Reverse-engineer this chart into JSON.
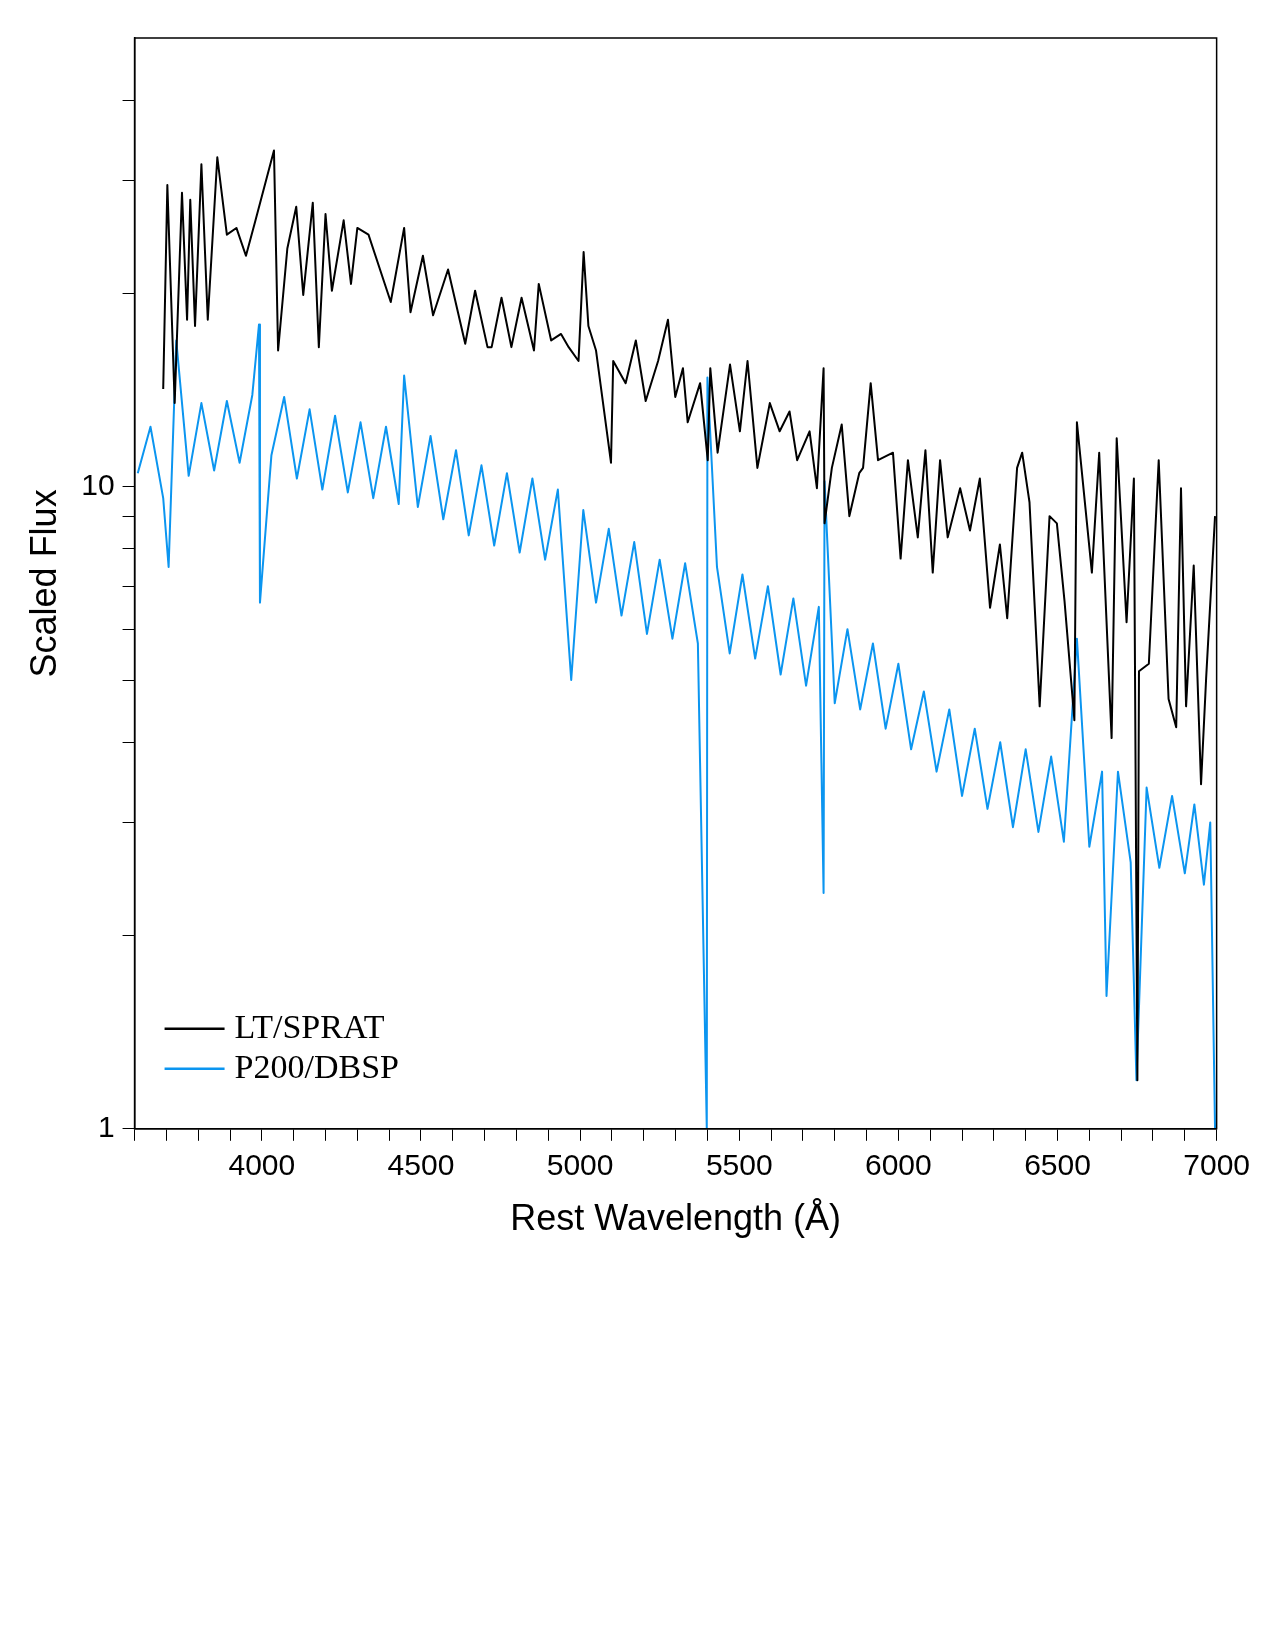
{
  "chart_data": {
    "type": "line",
    "xlabel": "Rest Wavelength (Å)",
    "ylabel": "Scaled Flux",
    "log": "y",
    "grid": false,
    "legend": "bottom left",
    "marker": "none",
    "line_style": "solid",
    "xlim": [
      3600,
      7000
    ],
    "ylim": [
      1,
      50
    ],
    "xticks": [
      {
        "value": 3600,
        "label": null
      },
      {
        "value": 3700,
        "label": null
      },
      {
        "value": 3800,
        "label": null
      },
      {
        "value": 3900,
        "label": null
      },
      4000,
      {
        "value": 4100,
        "label": null
      },
      {
        "value": 4200,
        "label": null
      },
      {
        "value": 4300,
        "label": null
      },
      {
        "value": 4400,
        "label": null
      },
      4500,
      {
        "value": 4600,
        "label": null
      },
      {
        "value": 4700,
        "label": null
      },
      {
        "value": 4800,
        "label": null
      },
      {
        "value": 4900,
        "label": null
      },
      5000,
      {
        "value": 5100,
        "label": null
      },
      {
        "value": 5200,
        "label": null
      },
      {
        "value": 5300,
        "label": null
      },
      {
        "value": 5400,
        "label": null
      },
      5500,
      {
        "value": 5600,
        "label": null
      },
      {
        "value": 5700,
        "label": null
      },
      {
        "value": 5800,
        "label": null
      },
      {
        "value": 5900,
        "label": null
      },
      6000,
      {
        "value": 6100,
        "label": null
      },
      {
        "value": 6200,
        "label": null
      },
      {
        "value": 6300,
        "label": null
      },
      {
        "value": 6400,
        "label": null
      },
      6500,
      {
        "value": 6600,
        "label": null
      },
      {
        "value": 6700,
        "label": null
      },
      {
        "value": 6800,
        "label": null
      },
      {
        "value": 6900,
        "label": null
      },
      7000
    ],
    "yticks": [
      1,
      {
        "value": 2,
        "label": null
      },
      {
        "value": 3,
        "label": null
      },
      {
        "value": 4,
        "label": null
      },
      {
        "value": 5,
        "label": null
      },
      {
        "value": 6,
        "label": null
      },
      {
        "value": 7,
        "label": null
      },
      {
        "value": 8,
        "label": null
      },
      {
        "value": 9,
        "label": null
      },
      10,
      {
        "value": 20,
        "label": null
      },
      {
        "value": 30,
        "label": null
      },
      {
        "value": 40,
        "label": null
      }
    ],
    "series": [
      {
        "name": "LT/SPRAT",
        "color": "#000000",
        "x": [
          3690,
          3703,
          3726,
          3749,
          3765,
          3775,
          3790,
          3810,
          3830,
          3860,
          3890,
          3920,
          3950,
          3980,
          4038,
          4051,
          4080,
          4108,
          4130,
          4160,
          4179,
          4200,
          4220,
          4257,
          4280,
          4300,
          4335,
          4405,
          4447,
          4467,
          4506,
          4538,
          4585,
          4639,
          4670,
          4709,
          4722,
          4753,
          4784,
          4816,
          4855,
          4870,
          4909,
          4940,
          4964,
          4995,
          5011,
          5026,
          5050,
          5097,
          5104,
          5143,
          5175,
          5206,
          5245,
          5276,
          5299,
          5323,
          5338,
          5377,
          5401,
          5409,
          5432,
          5471,
          5502,
          5526,
          5557,
          5596,
          5627,
          5658,
          5682,
          5721,
          5744,
          5765,
          5768,
          5791,
          5822,
          5846,
          5877,
          5889,
          5913,
          5936,
          5983,
          6007,
          6030,
          6061,
          6085,
          6108,
          6131,
          6155,
          6194,
          6225,
          6256,
          6288,
          6319,
          6342,
          6373,
          6389,
          6412,
          6444,
          6475,
          6498,
          6522,
          6553,
          6561,
          6608,
          6631,
          6670,
          6686,
          6717,
          6740,
          6751,
          6756,
          6787,
          6818,
          6849,
          6873,
          6888,
          6904,
          6928,
          6951,
          6967,
          6995
        ],
        "values": [
          14.2,
          29.5,
          13.5,
          28.7,
          18.2,
          28,
          17.8,
          31.8,
          18.2,
          32.6,
          24.7,
          25.3,
          22.9,
          26,
          33.4,
          16.3,
          23.5,
          27.3,
          19.9,
          27.7,
          16.5,
          26.6,
          20.2,
          26,
          20.7,
          25.3,
          24.7,
          19.4,
          25.3,
          18.7,
          22.9,
          18.5,
          21.8,
          16.7,
          20.2,
          16.5,
          16.5,
          19.7,
          16.5,
          19.7,
          16.3,
          20.7,
          16.9,
          17.3,
          16.5,
          15.7,
          23.2,
          17.8,
          16.3,
          10.9,
          15.7,
          14.5,
          16.9,
          13.6,
          15.7,
          18.2,
          13.8,
          15.3,
          12.6,
          14.5,
          11.0,
          15.3,
          11.3,
          15.5,
          12.2,
          15.7,
          10.7,
          13.5,
          12.2,
          13.1,
          11.0,
          12.2,
          9.95,
          15.3,
          8.77,
          10.7,
          12.5,
          9.0,
          10.5,
          10.7,
          14.5,
          11.0,
          11.3,
          7.73,
          11.0,
          8.34,
          11.4,
          7.35,
          11.0,
          8.34,
          9.95,
          8.55,
          10.3,
          6.48,
          8.13,
          6.24,
          10.7,
          11.3,
          9.46,
          4.55,
          9.0,
          8.77,
          6.64,
          4.33,
          12.6,
          7.35,
          11.3,
          4.06,
          11.9,
          6.15,
          10.3,
          1.19,
          5.16,
          5.3,
          11.0,
          4.67,
          4.22,
          9.95,
          4.55,
          7.54,
          3.44,
          5.03,
          9.0
        ]
      },
      {
        "name": "P200/DBSP",
        "color": "#0b95f0",
        "x": [
          3610,
          3650,
          3690,
          3707,
          3731,
          3770,
          3810,
          3850,
          3890,
          3930,
          3970,
          3991,
          3994,
          4030,
          4070,
          4110,
          4150,
          4190,
          4230,
          4270,
          4310,
          4350,
          4390,
          4430,
          4447,
          4490,
          4530,
          4570,
          4610,
          4650,
          4690,
          4730,
          4770,
          4810,
          4850,
          4890,
          4930,
          4972,
          5010,
          5050,
          5090,
          5130,
          5170,
          5210,
          5250,
          5290,
          5330,
          5370,
          5398,
          5400,
          5430,
          5470,
          5510,
          5550,
          5590,
          5630,
          5670,
          5710,
          5750,
          5765,
          5768,
          5800,
          5840,
          5880,
          5920,
          5960,
          6000,
          6040,
          6080,
          6120,
          6160,
          6200,
          6240,
          6280,
          6320,
          6360,
          6400,
          6440,
          6480,
          6520,
          6561,
          6600,
          6640,
          6654,
          6690,
          6730,
          6748,
          6780,
          6820,
          6860,
          6900,
          6930,
          6960,
          6980,
          6995
        ],
        "values": [
          10.5,
          12.4,
          9.6,
          7.5,
          16.9,
          10.4,
          13.5,
          10.6,
          13.6,
          10.9,
          13.9,
          17.9,
          6.6,
          11.2,
          13.8,
          10.3,
          13.2,
          9.9,
          12.9,
          9.8,
          12.6,
          9.6,
          12.4,
          9.4,
          14.9,
          9.3,
          12.0,
          8.9,
          11.4,
          8.4,
          10.8,
          8.1,
          10.5,
          7.9,
          10.3,
          7.7,
          9.9,
          5.0,
          9.2,
          6.6,
          8.6,
          6.3,
          8.2,
          5.9,
          7.7,
          5.8,
          7.6,
          5.7,
          1.0,
          14.8,
          7.5,
          5.5,
          7.3,
          5.4,
          7.0,
          5.1,
          6.7,
          4.9,
          6.5,
          2.33,
          10.2,
          4.6,
          6.0,
          4.5,
          5.7,
          4.2,
          5.3,
          3.9,
          4.8,
          3.6,
          4.5,
          3.3,
          4.2,
          3.15,
          4.0,
          2.95,
          3.9,
          2.9,
          3.8,
          2.8,
          5.8,
          2.75,
          3.6,
          1.61,
          3.6,
          2.6,
          1.19,
          3.4,
          2.55,
          3.3,
          2.5,
          3.2,
          2.4,
          3.0,
          1.0
        ]
      }
    ]
  }
}
